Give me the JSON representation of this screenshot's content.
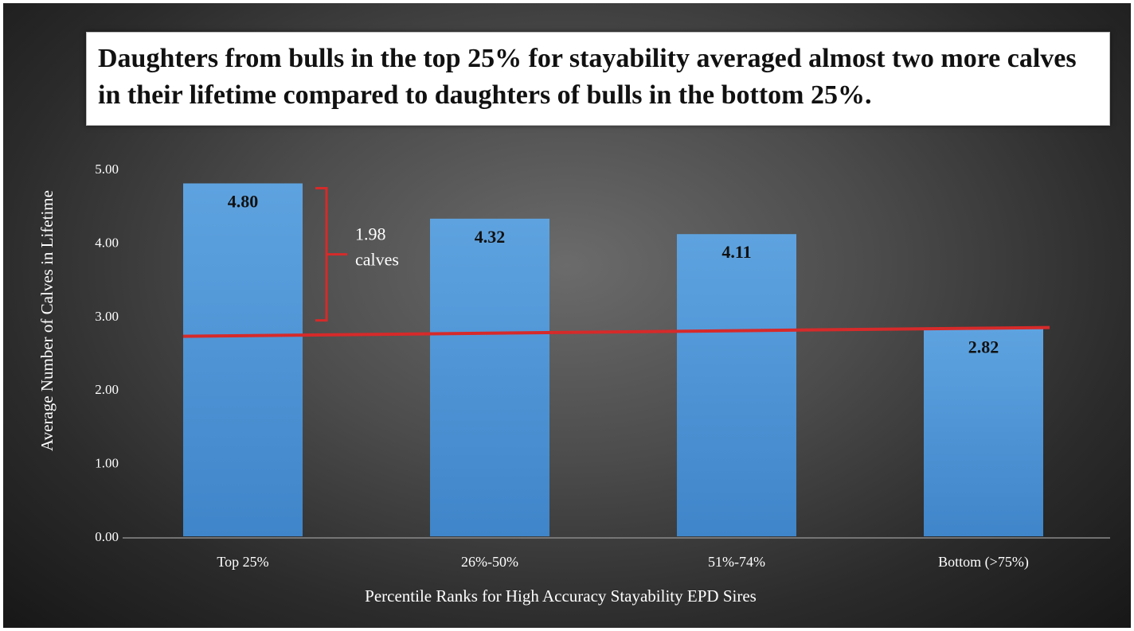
{
  "title": "Daughters from bulls in the top 25% for stayability averaged almost two more calves in their lifetime compared to daughters of bulls in the bottom 25%.",
  "chart_data": {
    "type": "bar",
    "categories": [
      "Top 25%",
      "26%-50%",
      "51%-74%",
      "Bottom (>75%)"
    ],
    "values": [
      4.8,
      4.32,
      4.11,
      2.82
    ],
    "value_labels": [
      "4.80",
      "4.32",
      "4.11",
      "2.82"
    ],
    "xlabel": "Percentile Ranks for High Accuracy Stayability EPD Sires",
    "ylabel": "Average Number of Calves in Lifetime",
    "ylim": [
      0,
      5
    ],
    "yticks": [
      0,
      1,
      2,
      3,
      4,
      5
    ],
    "ytick_labels": [
      "0.00",
      "1.00",
      "2.00",
      "3.00",
      "4.00",
      "5.00"
    ],
    "grid": false,
    "legend": "none",
    "bar_color": "#4f95d6",
    "reference_line": {
      "color": "#d62a2a",
      "y_start": 2.72,
      "y_end": 2.84
    },
    "annotation": {
      "line1": "1.98",
      "line2": "calves",
      "bracket_from": 2.98,
      "bracket_to": 4.8,
      "color": "#d62a2a"
    }
  }
}
